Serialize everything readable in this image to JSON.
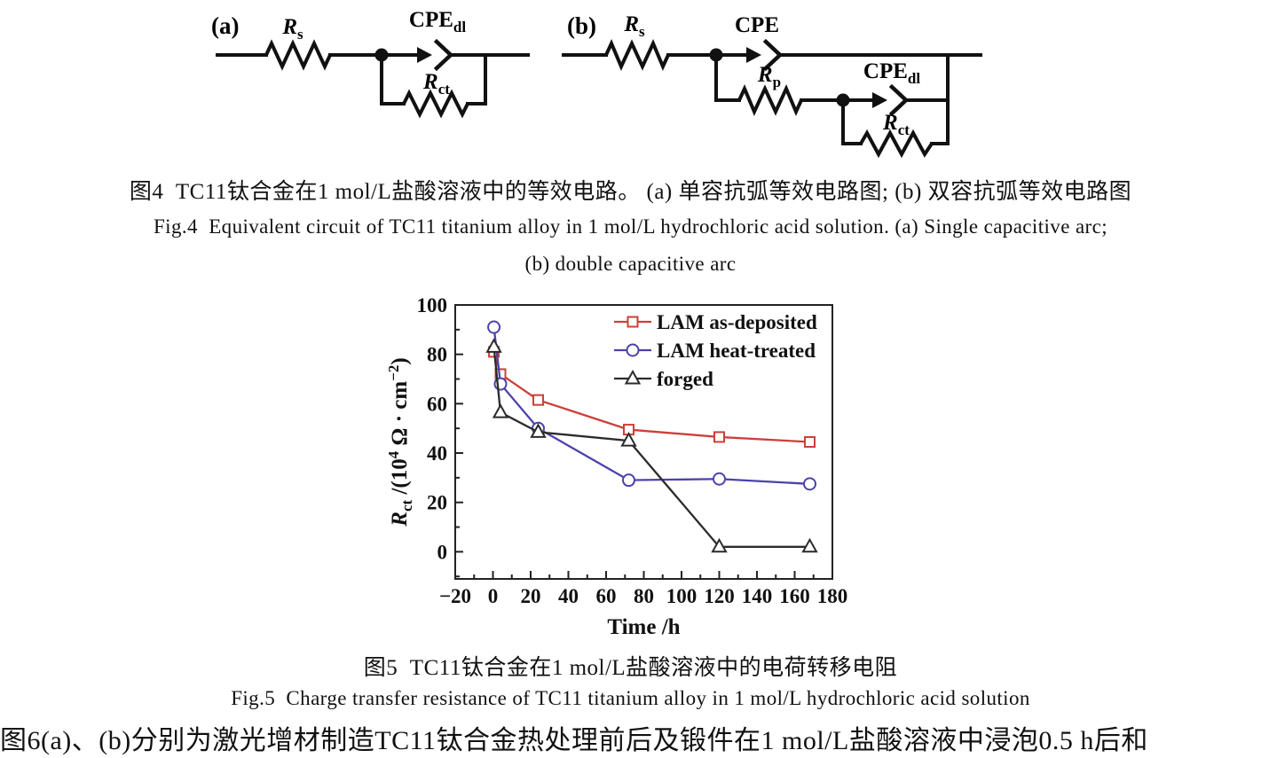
{
  "figure4": {
    "circuit_a": {
      "panel_label": "(a)",
      "r_s": "*{R}_{s}",
      "cpe_dl": "CPE_{dl}",
      "r_ct": "*{R}_{ct}"
    },
    "circuit_b": {
      "panel_label": "(b)",
      "r_s": "*{R}_{s}",
      "cpe": "CPE",
      "r_p": "*{R}_{p}",
      "cpe_dl": "CPE_{dl}",
      "r_ct": "*{R}_{ct}"
    },
    "caption_zh": "图4  TC11钛合金在1 mol/L盐酸溶液中的等效电路。 (a) 单容抗弧等效电路图; (b) 双容抗弧等效电路图",
    "caption_en_line1": "Fig.4  Equivalent circuit of TC11 titanium alloy in 1 mol/L hydrochloric acid solution. (a) Single capacitive arc;",
    "caption_en_line2": "(b) double capacitive arc"
  },
  "figure5": {
    "caption_zh": "图5  TC11钛合金在1 mol/L盐酸溶液中的电荷转移电阻",
    "caption_en": "Fig.5  Charge transfer resistance of TC11 titanium alloy in 1 mol/L hydrochloric acid solution"
  },
  "body_text": "图6(a)、(b)分别为激光增材制造TC11钛合金热处理前后及锻件在1 mol/L盐酸溶液中浸泡0.5 h后和",
  "chart_data": {
    "type": "line",
    "title": "",
    "xlabel": "Time /h",
    "ylabel": "*{R}_{ct} /(10^{4} Ω · cm^{−2})",
    "xlim": [
      -20,
      180
    ],
    "ylim": [
      -11,
      100
    ],
    "xticks": [
      -20,
      0,
      20,
      40,
      60,
      80,
      100,
      120,
      140,
      160,
      180
    ],
    "yticks": [
      0,
      20,
      40,
      60,
      80,
      100
    ],
    "grid": false,
    "legend_position": "top-right",
    "x": [
      0.5,
      4,
      24,
      72,
      120,
      168
    ],
    "series": [
      {
        "name": "LAM as-deposited",
        "marker": "square",
        "color": "#cc4038",
        "values": [
          81,
          72,
          61.5,
          49.5,
          46.5,
          44.5
        ]
      },
      {
        "name": "LAM heat-treated",
        "marker": "circle",
        "color": "#4b42aa",
        "values": [
          91,
          68,
          50,
          29,
          29.5,
          27.5
        ]
      },
      {
        "name": "forged",
        "marker": "triangle",
        "color": "#2b2b2b",
        "values": [
          83,
          56.5,
          48.5,
          45,
          2,
          2
        ]
      }
    ],
    "frame_color": "#222",
    "text_color": "#111"
  }
}
